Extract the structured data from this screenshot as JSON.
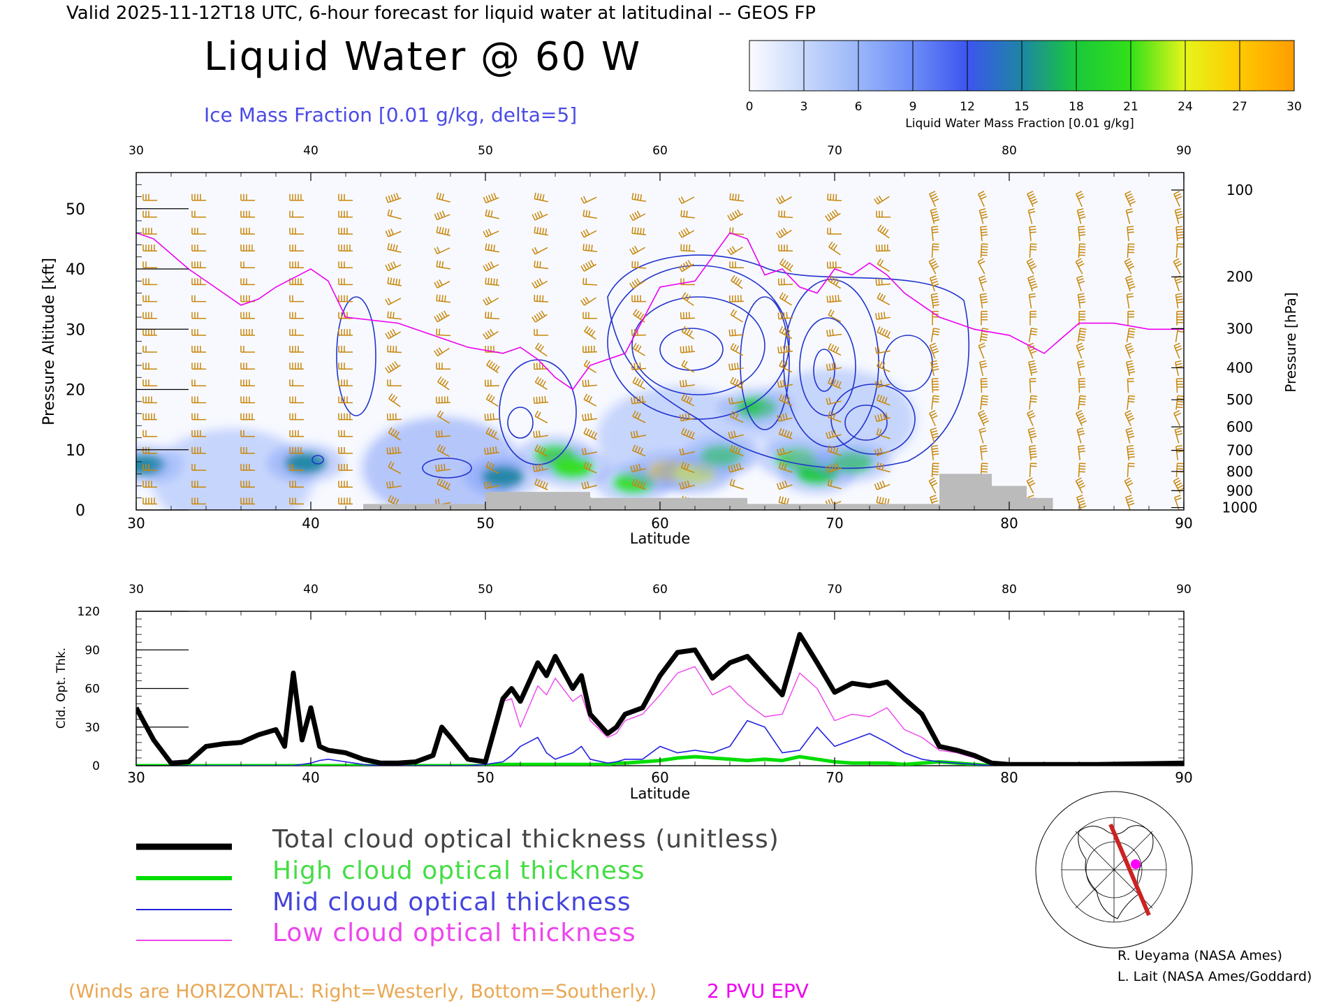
{
  "header": {
    "valid_line": "Valid 2025-11-12T18 UTC, 6-hour forecast for liquid water at latitudinal -- GEOS FP",
    "title": "Liquid Water @ 60 W",
    "subtitle": "Ice Mass Fraction [0.01 g/kg, delta=5]"
  },
  "colorbar": {
    "ticks": [
      "0",
      "3",
      "6",
      "9",
      "12",
      "15",
      "18",
      "21",
      "24",
      "27",
      "30"
    ],
    "label": "Liquid Water Mass Fraction [0.01 g/kg]",
    "colors": [
      "#fbfbff",
      "#c8d8fb",
      "#9ab6fa",
      "#6b8cf7",
      "#3c55ef",
      "#1d86a4",
      "#19c93a",
      "#33e019",
      "#e6f51a",
      "#ffc900",
      "#ff9c00",
      "#ff4d10"
    ]
  },
  "chart_data": [
    {
      "type": "heatmap",
      "name": "cross-section",
      "xlabel": "Latitude",
      "ylabel": "Pressure Altitude [kft]",
      "ylabel_right": "Pressure [hPa]",
      "xlim": [
        30,
        90
      ],
      "ylim": [
        0,
        56
      ],
      "x_ticks": [
        "30",
        "40",
        "50",
        "60",
        "70",
        "80",
        "90"
      ],
      "y_ticks": [
        "0",
        "10",
        "20",
        "30",
        "40",
        "50"
      ],
      "pressure_ticks": [
        "100",
        "200",
        "300",
        "400",
        "500",
        "600",
        "700",
        "800",
        "900",
        "1000"
      ],
      "pressure_levels_kft": [
        53.1,
        38.7,
        30.1,
        23.6,
        18.3,
        13.8,
        9.9,
        6.4,
        3.2,
        0.4
      ],
      "epv_2pvu_line": {
        "lat": [
          30,
          31,
          33,
          35,
          36,
          37,
          38,
          40,
          41,
          42,
          45,
          47,
          49,
          51,
          52,
          53,
          54,
          55,
          56,
          57,
          58,
          60,
          62,
          63,
          64,
          65,
          66,
          67,
          68,
          69,
          70,
          71,
          72,
          73,
          74,
          75,
          76,
          77,
          78,
          80,
          82,
          84,
          86,
          88,
          90
        ],
        "kft": [
          46,
          45,
          40,
          36,
          34,
          35,
          37,
          40,
          38,
          32,
          31,
          29,
          27,
          26,
          27,
          25,
          22,
          20,
          24,
          25,
          26,
          37,
          38,
          42,
          46,
          45,
          39,
          40,
          37,
          36,
          40,
          39,
          41,
          39,
          36,
          34,
          32,
          31,
          30,
          29,
          26,
          31,
          31,
          30,
          30
        ]
      },
      "liquid_water_regions": [
        {
          "lat": 30.5,
          "kft": 7.5,
          "value": 16
        },
        {
          "lat": 35.5,
          "kft": 5.0,
          "value": 6
        },
        {
          "lat": 39.7,
          "kft": 7.8,
          "value": 15
        },
        {
          "lat": 47.5,
          "kft": 7.0,
          "value": 9
        },
        {
          "lat": 51.0,
          "kft": 5.5,
          "value": 14
        },
        {
          "lat": 54.0,
          "kft": 9.0,
          "value": 22
        },
        {
          "lat": 55.0,
          "kft": 7.0,
          "value": 20
        },
        {
          "lat": 58.5,
          "kft": 4.5,
          "value": 20
        },
        {
          "lat": 60.5,
          "kft": 6.5,
          "value": 27
        },
        {
          "lat": 62.0,
          "kft": 6.0,
          "value": 24
        },
        {
          "lat": 63.5,
          "kft": 9.0,
          "value": 19
        },
        {
          "lat": 65.5,
          "kft": 17.0,
          "value": 17
        },
        {
          "lat": 67.8,
          "kft": 8.5,
          "value": 22
        },
        {
          "lat": 69.0,
          "kft": 6.0,
          "value": 18
        },
        {
          "lat": 71.0,
          "kft": 8.0,
          "value": 19
        },
        {
          "lat": 61.0,
          "kft": 12.0,
          "value": 5
        },
        {
          "lat": 70.0,
          "kft": 15.0,
          "value": 6
        }
      ],
      "terrain": {
        "lat": [
          30,
          43,
          43,
          50,
          50,
          56,
          56,
          65,
          65,
          76,
          76,
          79,
          79,
          81,
          81,
          82.5,
          82.5,
          90
        ],
        "kft": [
          0,
          0,
          1,
          1,
          3,
          3,
          2,
          2,
          1,
          1,
          6,
          6,
          4,
          4,
          2,
          2,
          0,
          0
        ]
      }
    },
    {
      "type": "line",
      "name": "cloud-optical-thickness",
      "xlabel": "Latitude",
      "ylabel": "Cld. Opt. Thk.",
      "xlim": [
        30,
        90
      ],
      "ylim": [
        0,
        120
      ],
      "x_ticks": [
        "30",
        "40",
        "50",
        "60",
        "70",
        "80",
        "90"
      ],
      "y_ticks": [
        "0",
        "30",
        "60",
        "90",
        "120"
      ],
      "x": [
        30,
        31,
        32,
        33,
        34,
        35,
        36,
        37,
        38,
        38.5,
        39,
        39.5,
        40,
        40.5,
        41,
        42,
        43,
        44,
        45,
        46,
        47,
        47.5,
        48,
        49,
        50,
        51,
        51.5,
        52,
        53,
        53.5,
        54,
        55,
        55.5,
        56,
        57,
        57.5,
        58,
        59,
        60,
        61,
        62,
        63,
        64,
        65,
        66,
        67,
        68,
        69,
        70,
        71,
        72,
        73,
        74,
        75,
        76,
        77,
        78,
        79,
        80,
        85,
        90
      ],
      "series": [
        {
          "name": "Total cloud optical thickness (unitless)",
          "color": "#000000",
          "values": [
            45,
            20,
            2,
            3,
            15,
            17,
            18,
            24,
            28,
            15,
            72,
            20,
            45,
            15,
            12,
            10,
            5,
            2,
            2,
            3,
            8,
            30,
            22,
            5,
            3,
            52,
            60,
            50,
            80,
            70,
            85,
            60,
            70,
            40,
            25,
            30,
            40,
            45,
            70,
            88,
            90,
            68,
            80,
            85,
            70,
            55,
            102,
            80,
            57,
            64,
            62,
            65,
            52,
            40,
            15,
            12,
            8,
            2,
            1,
            1,
            2
          ]
        },
        {
          "name": "High cloud optical thickness",
          "color": "#00dd00",
          "values": [
            0,
            0,
            0,
            0,
            0,
            0,
            0,
            0,
            0,
            0,
            0,
            0,
            0,
            0,
            0,
            0,
            0,
            0,
            0,
            0,
            0,
            0,
            0,
            0,
            0,
            1,
            1,
            1,
            1,
            1,
            1,
            1,
            1,
            1,
            1,
            2,
            2,
            3,
            4,
            6,
            7,
            6,
            5,
            4,
            5,
            4,
            7,
            5,
            3,
            2,
            2,
            2,
            1,
            2,
            3,
            2,
            1,
            0,
            0,
            0,
            0
          ]
        },
        {
          "name": "Mid cloud optical thickness",
          "color": "#2222dd",
          "values": [
            0,
            0,
            0,
            0,
            0,
            0,
            0,
            0,
            0,
            0,
            0,
            1,
            2,
            4,
            5,
            3,
            1,
            0,
            0,
            0,
            0,
            0,
            0,
            0,
            1,
            3,
            8,
            15,
            22,
            10,
            5,
            10,
            15,
            5,
            2,
            3,
            5,
            5,
            15,
            10,
            12,
            10,
            15,
            35,
            30,
            10,
            12,
            30,
            15,
            20,
            25,
            18,
            10,
            5,
            3,
            2,
            1,
            0,
            0,
            0,
            0
          ]
        },
        {
          "name": "Low cloud optical thickness",
          "color": "#ee44ee",
          "values": [
            45,
            20,
            2,
            3,
            15,
            17,
            18,
            24,
            28,
            15,
            72,
            20,
            45,
            15,
            12,
            10,
            5,
            2,
            2,
            3,
            8,
            30,
            22,
            5,
            3,
            50,
            52,
            30,
            62,
            55,
            68,
            50,
            55,
            35,
            22,
            25,
            35,
            40,
            55,
            72,
            77,
            55,
            62,
            48,
            38,
            40,
            72,
            60,
            35,
            40,
            38,
            45,
            28,
            22,
            12,
            10,
            6,
            2,
            1,
            1,
            2
          ]
        }
      ]
    }
  ],
  "legend": {
    "items": [
      {
        "label": "Total cloud optical thickness (unitless)",
        "color": "#000000",
        "text_color": "#444444"
      },
      {
        "label": "High cloud optical thickness",
        "color": "#00dd00",
        "text_color": "#44dd44"
      },
      {
        "label": "Mid cloud optical thickness",
        "color": "#2222dd",
        "text_color": "#4444dd"
      },
      {
        "label": "Low cloud optical thickness",
        "color": "#ee44ee",
        "text_color": "#ee44ee"
      }
    ]
  },
  "footer": {
    "winds_note": "(Winds are HORIZONTAL: Right=Westerly, Bottom=Southerly.)",
    "epv_label": "2 PVU EPV",
    "credit_1": "R. Ueyama (NASA Ames)",
    "credit_2": "L. Lait (NASA Ames/Goddard)"
  },
  "colors": {
    "wind_barb": "#c8860a",
    "epv": "#ee00ee",
    "ice_contour": "#2233cc",
    "terrain": "#bbbbbb",
    "map_track": "#cc2222",
    "map_marker": "#ff00ff"
  }
}
